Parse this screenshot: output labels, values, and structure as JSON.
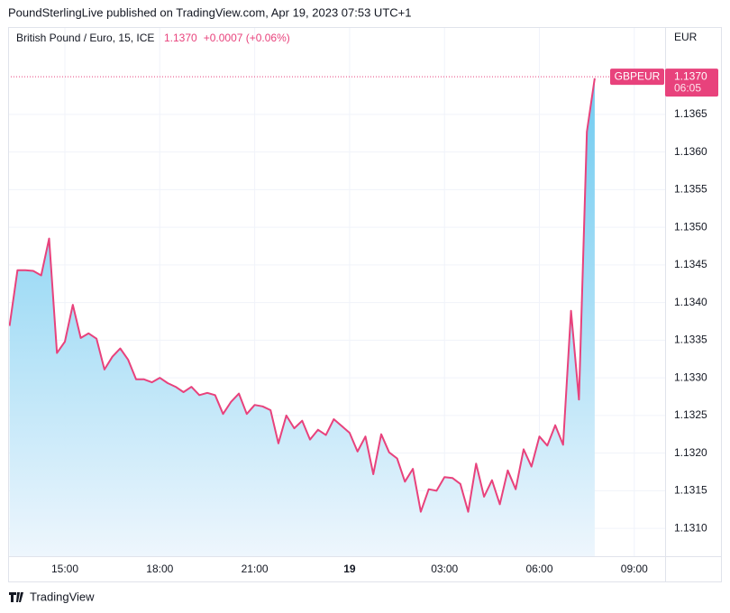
{
  "chart_data": {
    "type": "area",
    "header": "PoundSterlingLive published on TradingView.com, Apr 19, 2023 07:53 UTC+1",
    "legend": {
      "name": "British Pound / Euro, 15, ICE",
      "change": "+0.0007 (+0.06%)"
    },
    "axis_label": "EUR",
    "footer": "TradingView",
    "line_color": "#e8427c",
    "fill_top": "#62c6ef",
    "fill_bottom": "#eef6fd",
    "grid": true,
    "price_line": {
      "value": 1.137,
      "label": "1.1370",
      "symbol": "GBPEUR",
      "countdown": "06:05"
    },
    "x": [
      13.25,
      13.5,
      13.75,
      14,
      14.25,
      14.5,
      14.75,
      15,
      15.25,
      15.5,
      15.75,
      16,
      16.25,
      16.5,
      16.75,
      17,
      17.25,
      17.5,
      17.75,
      18,
      18.25,
      18.5,
      18.75,
      19,
      19.25,
      19.5,
      19.75,
      20,
      20.25,
      20.5,
      20.75,
      21,
      21.25,
      21.5,
      21.75,
      22,
      22.25,
      22.5,
      22.75,
      23,
      23.25,
      23.5,
      23.75,
      24,
      24.25,
      24.5,
      24.75,
      25,
      25.25,
      25.5,
      25.75,
      26,
      26.25,
      26.5,
      26.75,
      27,
      27.25,
      27.5,
      27.75,
      28,
      28.25,
      28.5,
      28.75,
      29,
      29.25,
      29.5,
      29.75,
      30,
      30.25,
      30.5,
      30.75,
      31,
      31.25,
      31.5,
      31.75
    ],
    "values": [
      1.13369,
      1.13443,
      1.13443,
      1.13442,
      1.13436,
      1.13485,
      1.13333,
      1.13348,
      1.13397,
      1.13353,
      1.13359,
      1.13352,
      1.13311,
      1.13328,
      1.13339,
      1.13324,
      1.13298,
      1.13298,
      1.13294,
      1.133,
      1.13293,
      1.13288,
      1.13281,
      1.13288,
      1.13277,
      1.1328,
      1.13277,
      1.13252,
      1.13268,
      1.13279,
      1.13252,
      1.13264,
      1.13262,
      1.13257,
      1.13213,
      1.1325,
      1.13233,
      1.13243,
      1.13218,
      1.13231,
      1.13224,
      1.13245,
      1.13236,
      1.13227,
      1.13202,
      1.13222,
      1.13172,
      1.13225,
      1.13201,
      1.13193,
      1.13162,
      1.13179,
      1.13122,
      1.13152,
      1.1315,
      1.13168,
      1.13167,
      1.13159,
      1.13122,
      1.13186,
      1.13142,
      1.13164,
      1.13132,
      1.13177,
      1.13152,
      1.13205,
      1.13182,
      1.13222,
      1.1321,
      1.13237,
      1.13211,
      1.13389,
      1.13271,
      1.13627,
      1.13698
    ],
    "xlim": [
      13.205,
      33.974
    ],
    "xticks": [
      {
        "value": 15,
        "label": "15:00"
      },
      {
        "value": 18,
        "label": "18:00"
      },
      {
        "value": 21,
        "label": "21:00"
      },
      {
        "value": 24,
        "label": "19"
      },
      {
        "value": 27,
        "label": "03:00"
      },
      {
        "value": 30,
        "label": "06:00"
      },
      {
        "value": 33,
        "label": "09:00"
      }
    ],
    "ylim": [
      1.13063,
      1.13766
    ],
    "yticks": [
      {
        "value": 1.131,
        "label": "1.1310"
      },
      {
        "value": 1.1315,
        "label": "1.1315"
      },
      {
        "value": 1.132,
        "label": "1.1320"
      },
      {
        "value": 1.1325,
        "label": "1.1325"
      },
      {
        "value": 1.133,
        "label": "1.1330"
      },
      {
        "value": 1.1335,
        "label": "1.1335"
      },
      {
        "value": 1.134,
        "label": "1.1340"
      },
      {
        "value": 1.1345,
        "label": "1.1345"
      },
      {
        "value": 1.135,
        "label": "1.1350"
      },
      {
        "value": 1.1355,
        "label": "1.1355"
      },
      {
        "value": 1.136,
        "label": "1.1360"
      },
      {
        "value": 1.1365,
        "label": "1.1365"
      }
    ]
  }
}
